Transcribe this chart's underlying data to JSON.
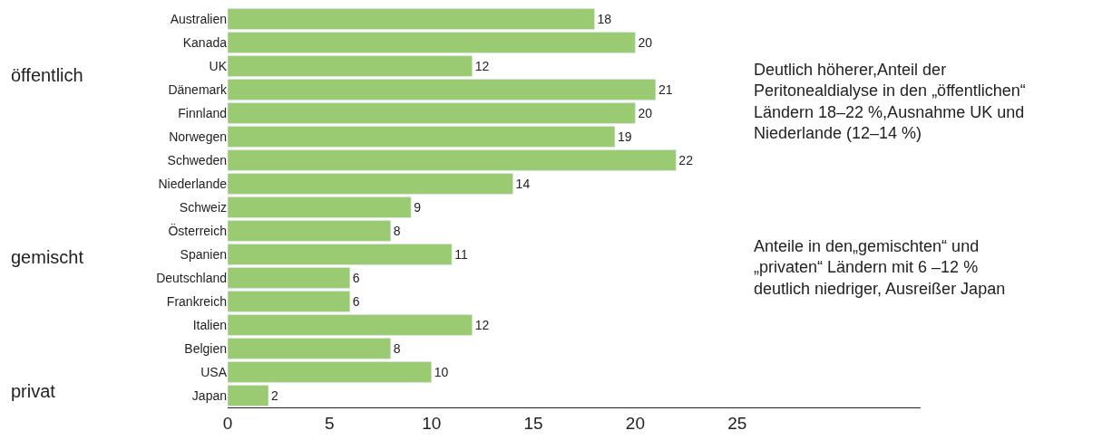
{
  "chart_data": {
    "type": "bar",
    "orientation": "horizontal",
    "categories": [
      "Australien",
      "Kanada",
      "UK",
      "Dänemark",
      "Finnland",
      "Norwegen",
      "Schweden",
      "Niederlande",
      "Schweiz",
      "Österreich",
      "Spanien",
      "Deutschland",
      "Frankreich",
      "Italien",
      "Belgien",
      "USA",
      "Japan"
    ],
    "values": [
      18,
      20,
      12,
      21,
      20,
      19,
      22,
      14,
      9,
      8,
      11,
      6,
      6,
      12,
      8,
      10,
      2
    ],
    "color": "#9acb72",
    "data_labels": true,
    "xlim": [
      0,
      34
    ],
    "xticks": [
      0,
      5,
      10,
      15,
      20,
      25
    ],
    "annotations": [
      "öffentlich",
      "gemischt",
      "privat",
      "Deutlich höherer,Anteil der\nPeritonealdialyse in den „öffentlichen“\nLändern 18–22 %,Ausnahme UK und\nNiederlande (12–14 %)",
      "Anteile in den„gemischten“ und\n„privaten“ Ländern mit 6 –12 %\ndeutlich niedriger, Ausreißer Japan"
    ]
  }
}
